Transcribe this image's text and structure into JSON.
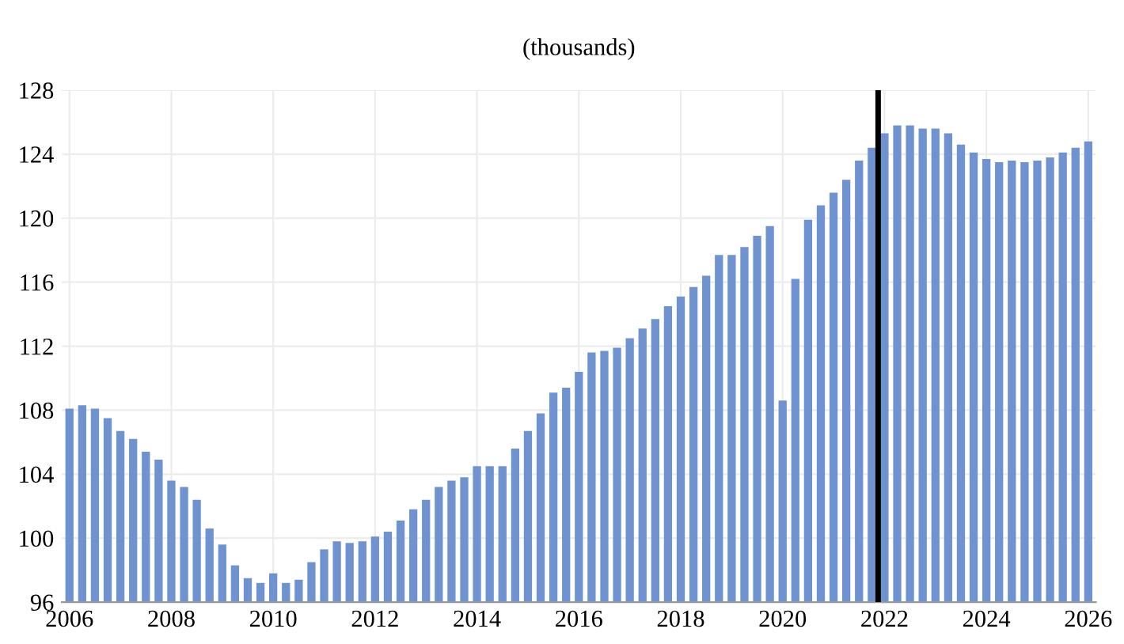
{
  "chart_data": {
    "type": "bar",
    "title": "(thousands)",
    "x": [
      2006,
      2006.25,
      2006.5,
      2006.75,
      2007,
      2007.25,
      2007.5,
      2007.75,
      2008,
      2008.25,
      2008.5,
      2008.75,
      2009,
      2009.25,
      2009.5,
      2009.75,
      2010,
      2010.25,
      2010.5,
      2010.75,
      2011,
      2011.25,
      2011.5,
      2011.75,
      2012,
      2012.25,
      2012.5,
      2012.75,
      2013,
      2013.25,
      2013.5,
      2013.75,
      2014,
      2014.25,
      2014.5,
      2014.75,
      2015,
      2015.25,
      2015.5,
      2015.75,
      2016,
      2016.25,
      2016.5,
      2016.75,
      2017,
      2017.25,
      2017.5,
      2017.75,
      2018,
      2018.25,
      2018.5,
      2018.75,
      2019,
      2019.25,
      2019.5,
      2019.75,
      2020,
      2020.25,
      2020.5,
      2020.75,
      2021,
      2021.25,
      2021.5,
      2021.75,
      2022,
      2022.25,
      2022.5,
      2022.75,
      2023,
      2023.25,
      2023.5,
      2023.75,
      2024,
      2024.25,
      2024.5,
      2024.75,
      2025,
      2025.25,
      2025.5,
      2025.75,
      2026
    ],
    "values": [
      108.1,
      108.3,
      108.1,
      107.5,
      106.7,
      106.2,
      105.4,
      104.9,
      103.6,
      103.2,
      102.4,
      100.6,
      99.6,
      98.3,
      97.5,
      97.2,
      97.8,
      97.2,
      97.4,
      98.5,
      99.3,
      99.8,
      99.7,
      99.8,
      100.1,
      100.4,
      101.1,
      101.8,
      102.4,
      103.2,
      103.6,
      103.8,
      104.5,
      104.5,
      104.5,
      105.6,
      106.7,
      107.8,
      109.1,
      109.4,
      110.4,
      111.6,
      111.7,
      111.9,
      112.5,
      113.1,
      113.7,
      114.5,
      115.1,
      115.7,
      116.4,
      117.7,
      117.7,
      118.2,
      118.9,
      119.5,
      108.6,
      116.2,
      119.9,
      120.8,
      121.6,
      122.4,
      123.6,
      124.4,
      125.3,
      125.8,
      125.8,
      125.6,
      125.6,
      125.3,
      124.6,
      124.1,
      123.7,
      123.5,
      123.6,
      123.5,
      123.6,
      123.8,
      124.1,
      124.4,
      124.8
    ],
    "color": "#6f93d1",
    "xlim": [
      2005.85,
      2026.15
    ],
    "xticks": [
      2006,
      2008,
      2010,
      2012,
      2014,
      2016,
      2018,
      2020,
      2022,
      2024,
      2026
    ],
    "ylim": [
      96,
      128
    ],
    "yticks": [
      96,
      100,
      104,
      108,
      112,
      116,
      120,
      124,
      128
    ],
    "grid": true,
    "ref_lines": [
      {
        "axis": "x",
        "value": 2021.875,
        "color": "#000000"
      }
    ]
  }
}
